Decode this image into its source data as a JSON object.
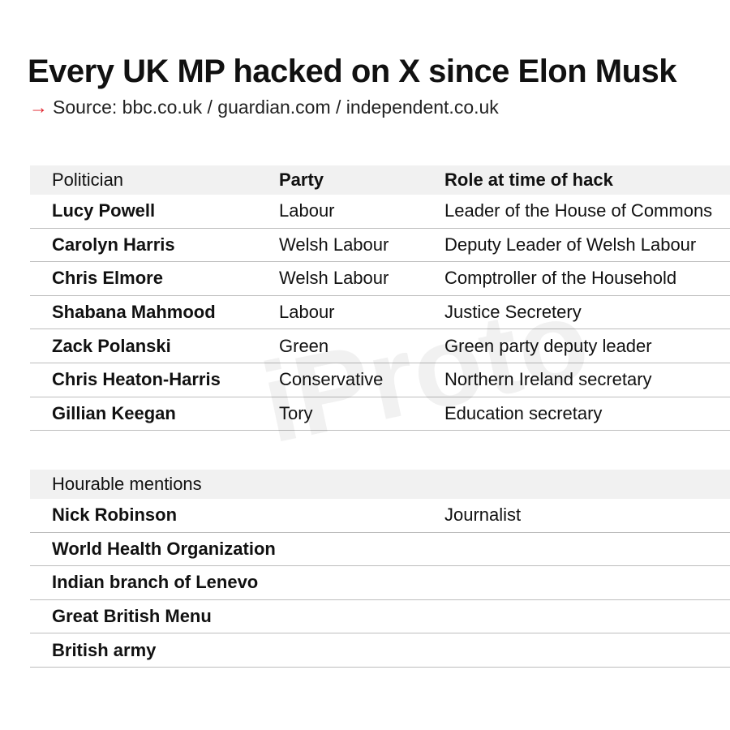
{
  "title": "Every UK MP hacked on X since Elon Musk",
  "source": {
    "arrow_icon": "right-arrow-icon",
    "arrow_color": "#e0202a",
    "text": "Source: bbc.co.uk / guardian.com / independent.co.uk"
  },
  "watermark": "iProto",
  "main_table": {
    "headers": [
      "Politician",
      "Party",
      "Role at time of hack"
    ],
    "rows": [
      [
        "Lucy Powell",
        "Labour",
        "Leader of the House of Commons"
      ],
      [
        "Carolyn Harris",
        "Welsh Labour",
        "Deputy Leader of Welsh Labour"
      ],
      [
        "Chris Elmore",
        "Welsh Labour",
        "Comptroller of the Household"
      ],
      [
        "Shabana Mahmood",
        "Labour",
        "Justice Secretery"
      ],
      [
        "Zack Polanski",
        "Green",
        "Green party deputy leader"
      ],
      [
        "Chris Heaton-Harris",
        "Conservative",
        "Northern Ireland secretary"
      ],
      [
        "Gillian Keegan",
        "Tory",
        "Education secretary"
      ]
    ]
  },
  "mentions_table": {
    "header": "Hourable mentions",
    "rows": [
      [
        "Nick Robinson",
        "",
        "Journalist"
      ],
      [
        "World Health Organization",
        "",
        ""
      ],
      [
        "Indian branch of Lenevo",
        "",
        ""
      ],
      [
        "Great British Menu",
        "",
        ""
      ],
      [
        "British army",
        "",
        ""
      ]
    ]
  }
}
